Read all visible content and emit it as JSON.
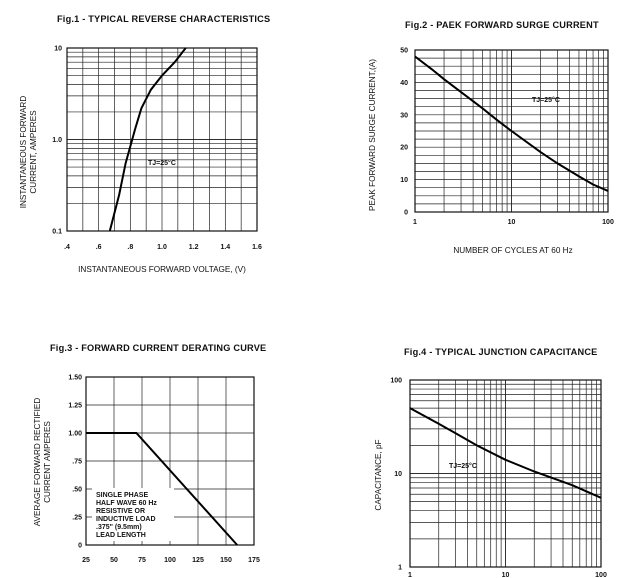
{
  "chart_data": [
    {
      "id": "fig1",
      "type": "line",
      "title": "Fig.1 - TYPICAL REVERSE CHARACTERISTICS",
      "xlabel": "INSTANTANEOUS FORWARD VOLTAGE, (V)",
      "ylabel_lines": [
        "INSTANTANEOUS FORWARD",
        "CURRENT, AMPERES"
      ],
      "yscale": "log",
      "xlim": [
        0.4,
        1.6
      ],
      "ylim": [
        0.1,
        10
      ],
      "x_ticks": [
        0.4,
        0.6,
        0.8,
        1.0,
        1.2,
        1.4,
        1.6
      ],
      "x_tick_labels": [
        ".4",
        ".6",
        ".8",
        "1.0",
        "1.2",
        "1.4",
        "1.6"
      ],
      "y_ticks": [
        0.1,
        1,
        10
      ],
      "y_tick_labels": [
        "0.1",
        "1.0",
        "10"
      ],
      "annotation": "TJ=25°C",
      "series": [
        {
          "name": "TJ=25°C",
          "x": [
            0.67,
            0.73,
            0.77,
            0.83,
            0.87,
            0.93,
            1.0,
            1.08,
            1.15
          ],
          "y": [
            0.1,
            0.25,
            0.55,
            1.3,
            2.2,
            3.5,
            5.0,
            7.0,
            10.0
          ]
        }
      ]
    },
    {
      "id": "fig2",
      "type": "line",
      "title": "Fig.2 - PAEK FORWARD SURGE CURRENT",
      "xlabel": "NUMBER OF CYCLES AT 60 Hz",
      "ylabel": "PEAK FORWARD SURGE CURRENT,(A)",
      "xscale": "log",
      "xlim": [
        1,
        100
      ],
      "ylim": [
        0,
        50
      ],
      "x_ticks": [
        1,
        10,
        100
      ],
      "x_tick_labels": [
        "1",
        "10",
        "100"
      ],
      "y_ticks": [
        0,
        10,
        20,
        30,
        40,
        50
      ],
      "y_tick_labels": [
        "0",
        "10",
        "20",
        "30",
        "40",
        "50"
      ],
      "annotation": "TJ=25°C",
      "series": [
        {
          "name": "TJ=25°C",
          "x": [
            1,
            1.5,
            2,
            3,
            5,
            7,
            10,
            20,
            30,
            50,
            70,
            100
          ],
          "y": [
            48,
            44,
            41,
            37,
            32,
            28.5,
            25,
            18.5,
            15,
            11,
            8.5,
            6.5
          ]
        }
      ]
    },
    {
      "id": "fig3",
      "type": "line",
      "title": "Fig.3 - FORWARD CURRENT DERATING CURVE",
      "ylabel_lines": [
        "AVERAGE FORWARD RECTIFIED",
        "CURRENT AMPERES"
      ],
      "xlim": [
        25,
        175
      ],
      "ylim": [
        0,
        1.5
      ],
      "x_ticks": [
        25,
        50,
        75,
        100,
        125,
        150,
        175
      ],
      "x_tick_labels": [
        "25",
        "50",
        "75",
        "100",
        "125",
        "150",
        "175"
      ],
      "y_ticks": [
        0,
        0.25,
        0.5,
        0.75,
        1.0,
        1.25,
        1.5
      ],
      "y_tick_labels": [
        "0",
        ".25",
        ".50",
        ".75",
        "1.00",
        "1.25",
        "1.50"
      ],
      "annotation_lines": [
        "SINGLE PHASE",
        "HALF WAVE 60 Hz",
        "RESISTIVE OR",
        "INDUCTIVE LOAD",
        ".375\" (9.5mm)",
        "LEAD LENGTH"
      ],
      "series": [
        {
          "name": "derating",
          "x": [
            25,
            70,
            160
          ],
          "y": [
            1.0,
            1.0,
            0
          ]
        }
      ]
    },
    {
      "id": "fig4",
      "type": "line",
      "title": "Fig.4 - TYPICAL JUNCTION CAPACITANCE",
      "ylabel": "CAPACITANCE, pF",
      "xscale": "log",
      "yscale": "log",
      "xlim": [
        1,
        100
      ],
      "ylim": [
        1,
        100
      ],
      "x_ticks": [
        1,
        10,
        100
      ],
      "x_tick_labels": [
        "1",
        "10",
        "100"
      ],
      "y_ticks": [
        1,
        10,
        100
      ],
      "y_tick_labels": [
        "1",
        "10",
        "100"
      ],
      "annotation": "TJ=25°C",
      "series": [
        {
          "name": "TJ=25°C",
          "x": [
            1,
            2,
            3,
            5,
            10,
            20,
            50,
            100
          ],
          "y": [
            50,
            34,
            27,
            20,
            14,
            10.5,
            7.5,
            5.5
          ]
        }
      ]
    }
  ]
}
